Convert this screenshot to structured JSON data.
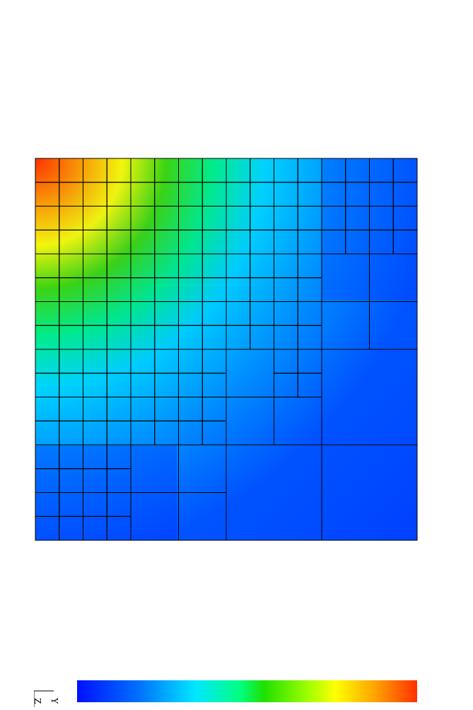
{
  "colormap": {
    "stops": [
      "#0010ff",
      "#0070ff",
      "#00e8ff",
      "#00ff80",
      "#20e000",
      "#a0ff00",
      "#ffff00",
      "#ffa000",
      "#ff3000"
    ]
  },
  "mesh": {
    "line_color": "#000000",
    "cells": [
      {
        "l": 0,
        "t": 0,
        "n": 16
      },
      {
        "l": 15,
        "t": 1,
        "n": 16
      },
      {
        "l": 14,
        "t": 4,
        "n": 8
      },
      {
        "l": 14,
        "t": 6,
        "n": 4
      }
    ]
  },
  "triad": {
    "label_z": "Z",
    "label_y": "Y"
  }
}
